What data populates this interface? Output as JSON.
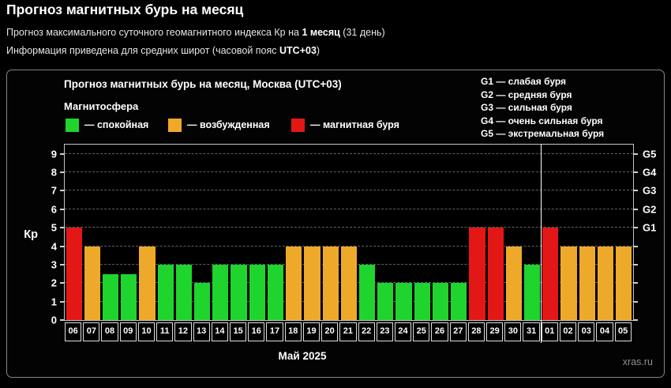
{
  "header": {
    "title": "Прогноз магнитных бурь на месяц",
    "subtitle1_prefix": "Прогноз максимального суточного геомагнитного индекса Кр на ",
    "subtitle1_bold": "1 месяц",
    "subtitle1_suffix": " (31 день)",
    "subtitle2_prefix": "Информация приведена для средних широт (часовой пояс ",
    "subtitle2_bold": "UTC+03",
    "subtitle2_suffix": ")"
  },
  "chart": {
    "title": "Прогноз магнитных бурь на месяц, Москва (UTC+03)",
    "legend_title": "Магнитосфера",
    "legend_items": [
      {
        "label": "— спокойная",
        "color": "#1fd42c",
        "state": "calm"
      },
      {
        "label": "— возбужденная",
        "color": "#efa92a",
        "state": "excited"
      },
      {
        "label": "— магнитная буря",
        "color": "#e41717",
        "state": "storm"
      }
    ],
    "g_scale_legend": [
      "G1 — слабая буря",
      "G2 — средняя буря",
      "G3 — сильная буря",
      "G4 — очень сильная буря",
      "G5 — экстремальная буря"
    ],
    "watermark": "xras.ru"
  },
  "chart_data": {
    "type": "bar",
    "title": "Прогноз магнитных бурь на месяц, Москва (UTC+03)",
    "xlabel": "Май 2025",
    "ylabel": "Кр",
    "ylim": [
      0,
      9.5
    ],
    "grid": "horizontal dashed lines at Kp 1-9",
    "legend_position": "top-left",
    "categories": [
      "06",
      "07",
      "08",
      "09",
      "10",
      "11",
      "12",
      "13",
      "14",
      "15",
      "16",
      "17",
      "18",
      "19",
      "20",
      "21",
      "22",
      "23",
      "24",
      "25",
      "26",
      "27",
      "28",
      "29",
      "30",
      "31",
      "01",
      "02",
      "03",
      "04",
      "05"
    ],
    "values": [
      5,
      4,
      2.5,
      2.5,
      4,
      3,
      3,
      2,
      3,
      3,
      3,
      3,
      4,
      4,
      4,
      4,
      3,
      2,
      2,
      2,
      2,
      2,
      5,
      5,
      4,
      3,
      5,
      4,
      4,
      4,
      4
    ],
    "states": [
      "storm",
      "excited",
      "calm",
      "calm",
      "excited",
      "calm",
      "calm",
      "calm",
      "calm",
      "calm",
      "calm",
      "calm",
      "excited",
      "excited",
      "excited",
      "excited",
      "calm",
      "calm",
      "calm",
      "calm",
      "calm",
      "calm",
      "storm",
      "storm",
      "excited",
      "calm",
      "storm",
      "excited",
      "excited",
      "excited",
      "excited"
    ],
    "state_colors": {
      "calm": "#1fd42c",
      "excited": "#efa92a",
      "storm": "#e41717"
    },
    "y_ticks": [
      0,
      1,
      2,
      3,
      4,
      5,
      6,
      7,
      8,
      9
    ],
    "right_axis": {
      "labels": [
        "G1",
        "G2",
        "G3",
        "G4",
        "G5"
      ],
      "at_kp": [
        5,
        6,
        7,
        8,
        9
      ]
    },
    "month_separator_after_index": 25,
    "month_label": "Май 2025",
    "watermark": "xras.ru"
  }
}
